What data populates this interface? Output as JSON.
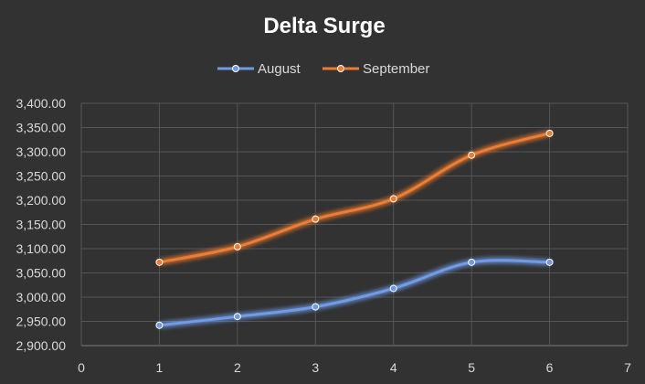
{
  "chart_data": {
    "type": "line",
    "title": "Delta Surge",
    "xlabel": "",
    "ylabel": "",
    "xlim": [
      0,
      7
    ],
    "ylim": [
      2900,
      3400
    ],
    "x_ticks": [
      "0",
      "1",
      "2",
      "3",
      "4",
      "5",
      "6",
      "7"
    ],
    "y_ticks": [
      "2,900.00",
      "2,950.00",
      "3,000.00",
      "3,050.00",
      "3,100.00",
      "3,150.00",
      "3,200.00",
      "3,250.00",
      "3,300.00",
      "3,350.00",
      "3,400.00"
    ],
    "grid": true,
    "smooth": true,
    "legend_position": "top",
    "series": [
      {
        "name": "August",
        "color": "#6f9be6",
        "x": [
          1,
          2,
          3,
          4,
          5,
          6
        ],
        "values": [
          2942,
          2960,
          2980,
          3018,
          3072,
          3072
        ]
      },
      {
        "name": "September",
        "color": "#ee7b30",
        "x": [
          1,
          2,
          3,
          4,
          5,
          6
        ],
        "values": [
          3072,
          3104,
          3161,
          3203,
          3293,
          3338
        ]
      }
    ]
  }
}
